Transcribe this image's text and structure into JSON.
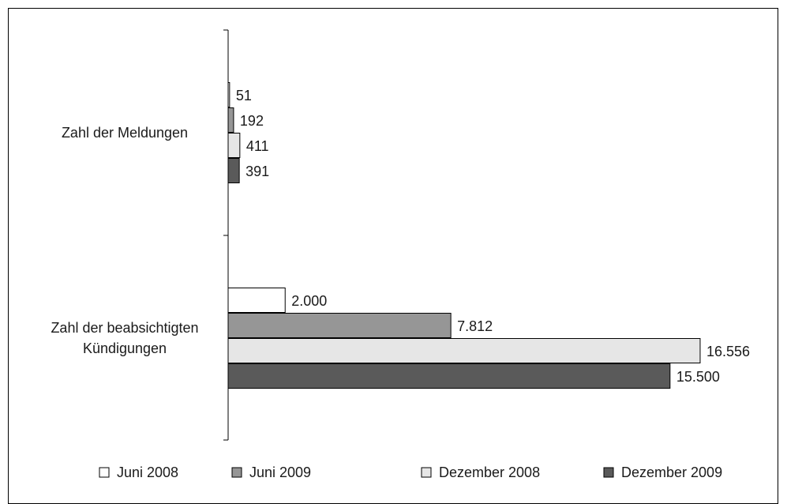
{
  "chart_data": {
    "type": "bar",
    "orientation": "horizontal",
    "categories": [
      "Zahl der Meldungen",
      "Zahl der beabsichtigten Kündigungen"
    ],
    "category_lines": [
      [
        "Zahl der Meldungen"
      ],
      [
        "Zahl der beabsichtigten",
        "Kündigungen"
      ]
    ],
    "series": [
      {
        "name": "Juni 2008",
        "color": "#ffffff",
        "values": [
          51,
          2000
        ],
        "labels": [
          "51",
          "2.000"
        ]
      },
      {
        "name": "Juni 2009",
        "color": "#969696",
        "values": [
          192,
          7812
        ],
        "labels": [
          "192",
          "7.812"
        ]
      },
      {
        "name": "Dezember 2008",
        "color": "#e6e6e6",
        "values": [
          411,
          16556
        ],
        "labels": [
          "411",
          "16.556"
        ]
      },
      {
        "name": "Dezember 2009",
        "color": "#5a5a5a",
        "values": [
          391,
          15500
        ],
        "labels": [
          "391",
          "15.500"
        ]
      }
    ],
    "xlim": [
      0,
      17000
    ],
    "grid": false,
    "legend_position": "bottom",
    "title": "",
    "xlabel": "",
    "ylabel": ""
  }
}
